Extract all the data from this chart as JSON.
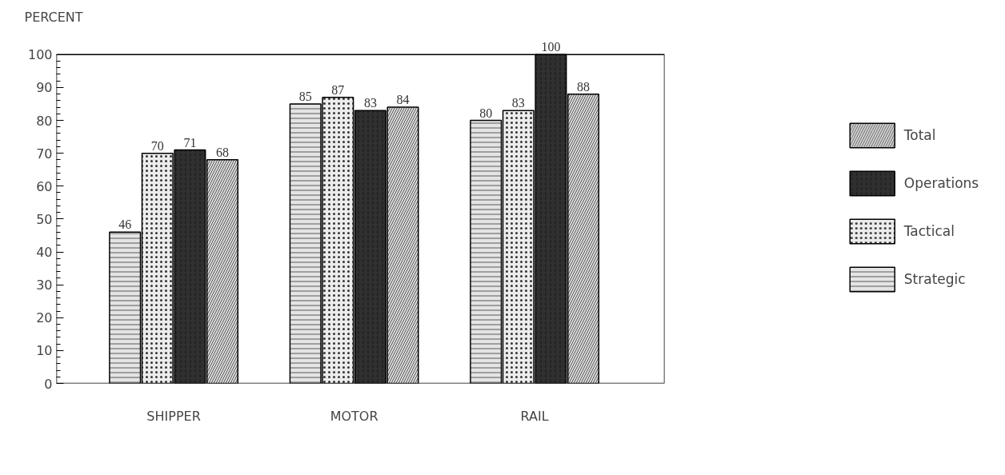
{
  "chart_data": {
    "type": "bar",
    "ylabel": "PERCENT",
    "categories": [
      "SHIPPER",
      "MOTOR",
      "RAIL"
    ],
    "series": [
      {
        "name": "Strategic",
        "color": "#e4e4e4",
        "values": [
          46,
          85,
          80
        ]
      },
      {
        "name": "Tactical",
        "color": "#ececec",
        "values": [
          70,
          87,
          83
        ]
      },
      {
        "name": "Operations",
        "color": "#303030",
        "values": [
          71,
          83,
          100
        ]
      },
      {
        "name": "Total",
        "color": "#dcdcdc",
        "values": [
          68,
          84,
          88
        ]
      }
    ],
    "ylim": [
      0,
      100
    ],
    "yticks": [
      0,
      10,
      20,
      30,
      40,
      50,
      60,
      70,
      80,
      90,
      100
    ],
    "data_labels": true,
    "grid": false,
    "legend": "right"
  }
}
